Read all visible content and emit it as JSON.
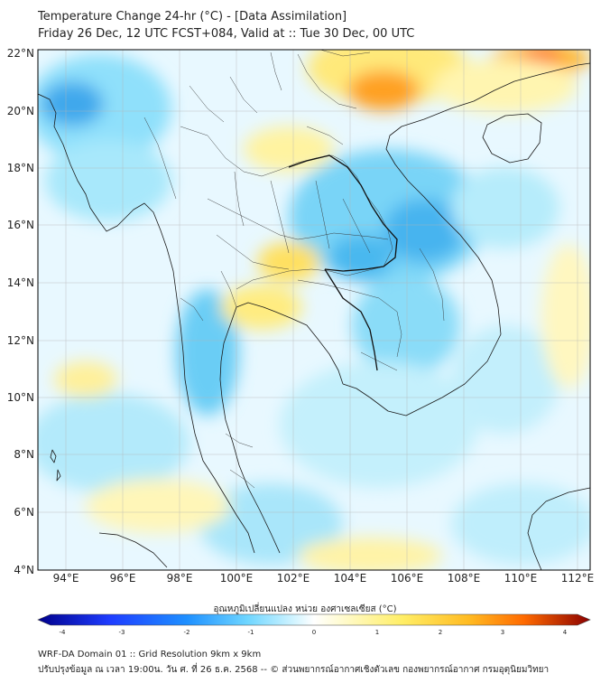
{
  "title_line1": "Temperature Change 24-hr (°C) - [Data Assimilation]",
  "title_line2": "Friday 26 Dec, 12 UTC FCST+084, Valid at :: Tue 30 Dec, 00 UTC",
  "lat_labels": [
    "22°N",
    "20°N",
    "18°N",
    "16°N",
    "14°N",
    "12°N",
    "10°N",
    "8°N",
    "6°N",
    "4°N"
  ],
  "lon_labels": [
    "94°E",
    "96°E",
    "98°E",
    "100°E",
    "102°E",
    "104°E",
    "106°E",
    "108°E",
    "110°E",
    "112°E"
  ],
  "colorbar": {
    "title": "อุณหภูมิเปลี่ยนแปลง หน่วย องศาเซลเซียส (°C)",
    "ticks": [
      "-4",
      "-3",
      "-2",
      "-1",
      "0",
      "1",
      "2",
      "3",
      "4"
    ],
    "min": -4,
    "max": 4
  },
  "colors": {
    "cold_strong": "#00008b",
    "cold": "#1e90ff",
    "cool": "#9be7ff",
    "neutral": "#ffffff",
    "warm": "#ffee66",
    "hot": "#ff8800",
    "hot_strong": "#8b0000"
  },
  "footer_line1": "WRF-DA Domain 01 :: Grid Resolution 9km x 9km",
  "footer_line2": "ปรับปรุงข้อมูล ณ เวลา 19:00น. วัน ศ. ที่ 26 ธ.ค. 2568 -- © ส่วนพยากรณ์อากาศเชิงตัวเลข กองพยากรณ์อากาศ กรมอุตุนิยมวิทยา"
}
